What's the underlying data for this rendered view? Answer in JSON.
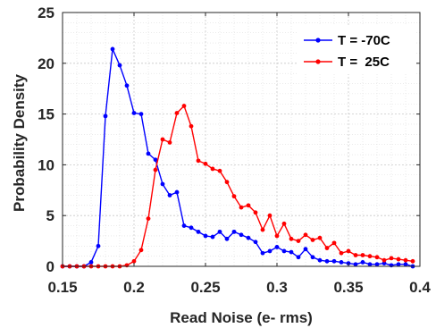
{
  "chart_data": {
    "type": "line",
    "xlabel": "Read Noise (e- rms)",
    "ylabel": "Probability Density",
    "xlim": [
      0.15,
      0.4
    ],
    "ylim": [
      0,
      25
    ],
    "xticks": [
      "0.15",
      "0.2",
      "0.25",
      "0.3",
      "0.35",
      "0.4"
    ],
    "yticks": [
      "0",
      "5",
      "10",
      "15",
      "20",
      "25"
    ],
    "grid": true,
    "legend_position": "top-right",
    "series": [
      {
        "name": "T = -70C",
        "color": "#0000ff",
        "x": [
          0.15,
          0.155,
          0.16,
          0.165,
          0.17,
          0.175,
          0.18,
          0.185,
          0.19,
          0.195,
          0.2,
          0.205,
          0.21,
          0.215,
          0.22,
          0.225,
          0.23,
          0.235,
          0.24,
          0.245,
          0.25,
          0.255,
          0.26,
          0.265,
          0.27,
          0.275,
          0.28,
          0.285,
          0.29,
          0.295,
          0.3,
          0.305,
          0.31,
          0.315,
          0.32,
          0.325,
          0.33,
          0.335,
          0.34,
          0.345,
          0.35,
          0.355,
          0.36,
          0.365,
          0.37,
          0.375,
          0.38,
          0.385,
          0.39,
          0.395
        ],
        "y": [
          0,
          0,
          0,
          0,
          0.4,
          2.0,
          14.8,
          21.4,
          19.8,
          17.8,
          15.1,
          15.0,
          11.1,
          10.5,
          8.1,
          7.0,
          7.3,
          4.0,
          3.8,
          3.4,
          3.0,
          2.9,
          3.4,
          2.7,
          3.4,
          3.1,
          2.8,
          2.4,
          1.3,
          1.5,
          1.9,
          1.5,
          1.4,
          0.9,
          1.7,
          0.9,
          0.6,
          0.5,
          0.5,
          0.4,
          0.3,
          0.2,
          0.4,
          0.2,
          0.2,
          0.3,
          0.1,
          0.2,
          0.2,
          0
        ]
      },
      {
        "name": "T =  25C",
        "color": "#ff0000",
        "x": [
          0.15,
          0.155,
          0.16,
          0.165,
          0.17,
          0.175,
          0.18,
          0.185,
          0.19,
          0.195,
          0.2,
          0.205,
          0.21,
          0.215,
          0.22,
          0.225,
          0.23,
          0.235,
          0.24,
          0.245,
          0.25,
          0.255,
          0.26,
          0.265,
          0.27,
          0.275,
          0.28,
          0.285,
          0.29,
          0.295,
          0.3,
          0.305,
          0.31,
          0.315,
          0.32,
          0.325,
          0.33,
          0.335,
          0.34,
          0.345,
          0.35,
          0.355,
          0.36,
          0.365,
          0.37,
          0.375,
          0.38,
          0.385,
          0.39,
          0.395
        ],
        "y": [
          0,
          0,
          0,
          0,
          0,
          0,
          0,
          0,
          0,
          0.1,
          0.5,
          1.6,
          4.7,
          9.5,
          12.5,
          12.2,
          15.1,
          15.8,
          13.8,
          10.4,
          10.1,
          9.6,
          9.4,
          8.3,
          6.9,
          5.8,
          6.0,
          5.3,
          3.6,
          5.0,
          3.0,
          4.2,
          2.7,
          2.5,
          3.1,
          2.6,
          2.8,
          1.8,
          2.3,
          1.3,
          1.5,
          1.1,
          1.1,
          1.0,
          0.9,
          0.6,
          0.8,
          0.7,
          0.6,
          0.5
        ]
      }
    ]
  }
}
